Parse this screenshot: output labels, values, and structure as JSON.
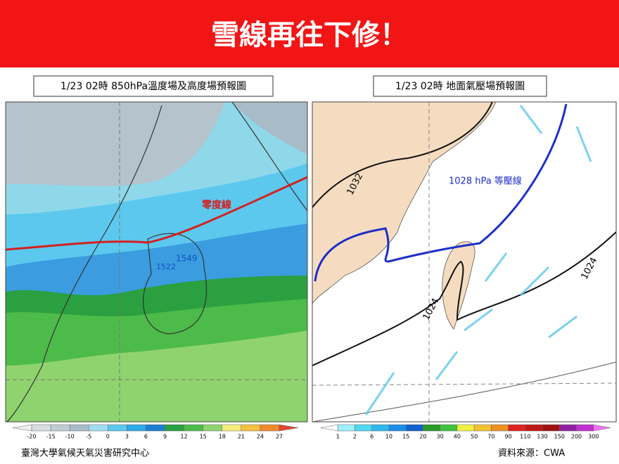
{
  "banner": {
    "title": "雪線再往下修！"
  },
  "left_panel": {
    "title": "1/23 02時 850hPa溫度場及高度場預報圖",
    "labels": [
      "零度線",
      "1549",
      "1522"
    ],
    "colorbar": {
      "ticks": [
        -20,
        -15,
        -10,
        -5,
        0,
        3,
        6,
        9,
        12,
        15,
        18,
        21,
        24,
        27
      ],
      "colors": [
        "#f0f0f0",
        "#d8dde0",
        "#c0cbd2",
        "#a8bcc8",
        "#9fdcf0",
        "#5cc8ee",
        "#2fa8e8",
        "#1a7fd0",
        "#2aa040",
        "#4dbb4a",
        "#8fd36f",
        "#f2ec7a",
        "#f5c040",
        "#ef8a2a",
        "#e0442a"
      ]
    }
  },
  "right_panel": {
    "title": "1/23 02時 地面氣壓場預報圖",
    "labels": [
      "1032",
      "1024",
      "1024",
      "1028 hPa 等壓線"
    ],
    "colorbar": {
      "ticks": [
        1,
        2,
        6,
        10,
        15,
        20,
        30,
        40,
        50,
        70,
        90,
        110,
        130,
        150,
        200,
        300
      ],
      "colors": [
        "#ffffff",
        "#9ff0fa",
        "#4ed9f4",
        "#2fb7ef",
        "#1b8ee8",
        "#1060d0",
        "#2a9a2a",
        "#3ec23c",
        "#f2f040",
        "#f2c030",
        "#ee9020",
        "#e02020",
        "#c01818",
        "#a01010",
        "#9020a0",
        "#c030d0",
        "#f070f0"
      ]
    }
  },
  "footer": {
    "left": "臺灣大學氣候天氣災害研究中心",
    "right": "資料來源：CWA"
  }
}
